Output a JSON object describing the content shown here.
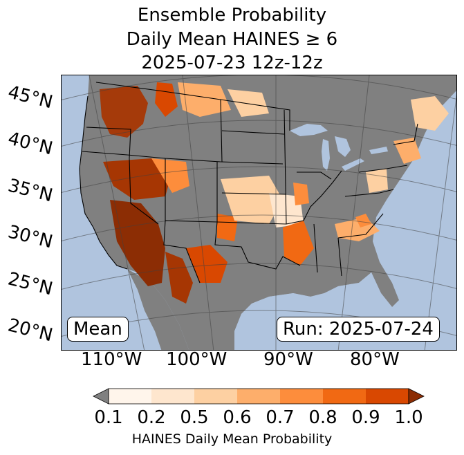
{
  "title": {
    "line1": "Ensemble Probability",
    "line2": "Daily Mean HAINES ≥ 6",
    "line3": "2025-07-23 12z-12z"
  },
  "map": {
    "latitude_labels": [
      "45°N",
      "40°N",
      "35°N",
      "30°N",
      "25°N",
      "20°N"
    ],
    "longitude_labels": [
      "110°W",
      "100°W",
      "90°W",
      "80°W"
    ],
    "ocean_color": "#b0c4de",
    "land_nodata_color": "#808080",
    "probability_regions": [
      {
        "area": "Pacific Northwest / Northern Rockies",
        "level": 0.9
      },
      {
        "area": "Great Basin / Nevada-Utah",
        "level": 0.9
      },
      {
        "area": "Southern California / Arizona / Sonora",
        "level": 1.0
      },
      {
        "area": "West Texas / Chihuahua",
        "level": 0.9
      },
      {
        "area": "Central Plains",
        "level": 0.5
      },
      {
        "area": "Lower Mississippi Valley / Arkansas",
        "level": 0.8
      },
      {
        "area": "Southeast / Carolinas",
        "level": 0.6
      },
      {
        "area": "Northeast",
        "level": 0.5
      }
    ]
  },
  "badges": {
    "mean": "Mean",
    "run": "Run: 2025-07-24"
  },
  "colorbar": {
    "ticks": [
      "0.1",
      "0.2",
      "0.5",
      "0.6",
      "0.7",
      "0.8",
      "0.9",
      "1.0"
    ],
    "colors": [
      "#fff5eb",
      "#fee6ce",
      "#fdd0a2",
      "#fdae6b",
      "#fd8d3c",
      "#f16913",
      "#d94801",
      "#a63603"
    ],
    "under_color": "#808080",
    "over_color": "#8c2d04",
    "label": "HAINES Daily Mean Probability"
  }
}
